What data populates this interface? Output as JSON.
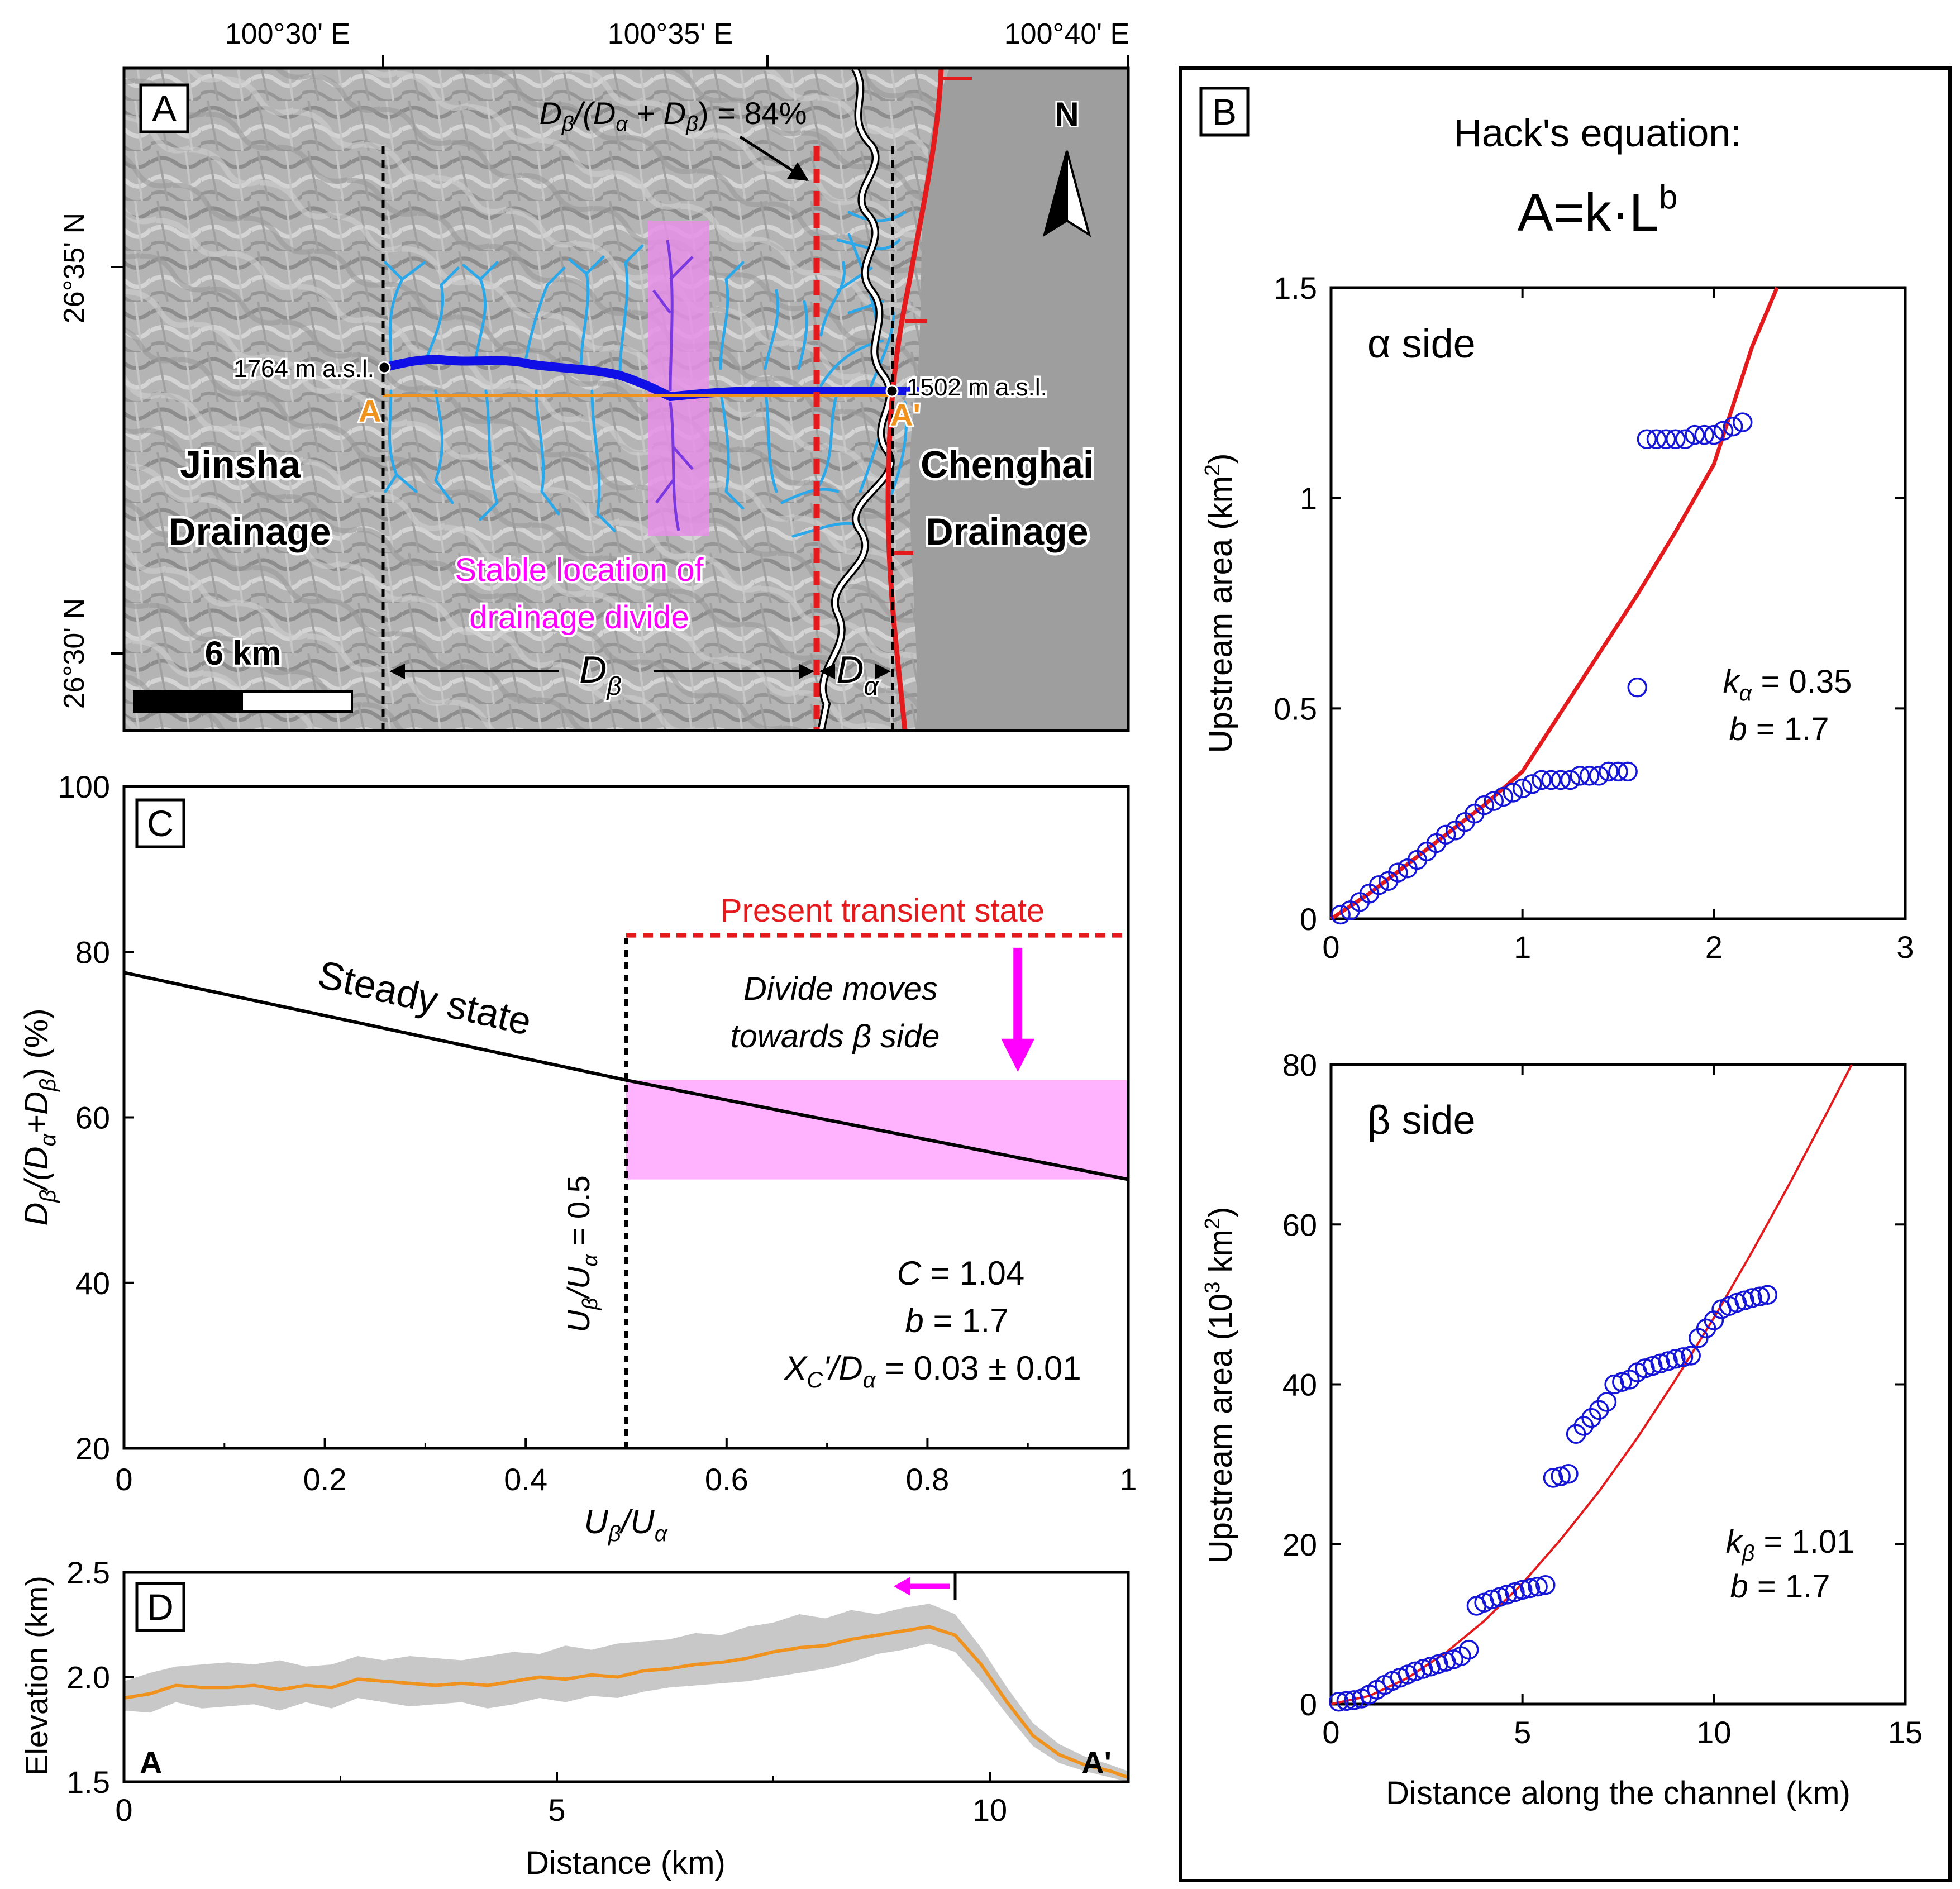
{
  "colors": {
    "accent_red": "#e41a1c",
    "river_dark": "#1010e6",
    "river_light": "#2ba8ea",
    "profile_orange": "#f0921e",
    "magenta": "#ff00ff",
    "pink_band": "#ffb3ff",
    "circle_blue": "#1515d8",
    "relief_gray": "#aaaaaa"
  },
  "panelA": {
    "label": "A",
    "top_lon_labels": [
      "100°30' E",
      "100°35' E",
      "100°40' E"
    ],
    "left_lat_labels": [
      "26°35' N",
      "26°30' N"
    ],
    "ratio_label": "Dβ/(Dα + Dβ) = 84%",
    "elev_left": "1764 m a.s.l.",
    "elev_right": "1502 m a.s.l.",
    "point_a": "A",
    "point_a_prime": "A'",
    "west_drainage": [
      "Jinsha",
      "Drainage"
    ],
    "east_drainage": [
      "Chenghai",
      "Drainage"
    ],
    "stable_location": [
      "Stable location of",
      "drainage divide"
    ],
    "scale_label": "6 km",
    "north_label": "N",
    "d_beta": "Dβ",
    "d_alpha": "Dα"
  },
  "panelB": {
    "label": "B",
    "title_line1": "Hack's equation:",
    "title_line2": "A=k·L",
    "title_exponent": "b",
    "xlabel": "Distance along the channel (km)"
  },
  "panelC": {
    "label": "C",
    "steady_state_label": "Steady state",
    "present_state_label": "Present transient state",
    "divide_moves": [
      "Divide moves",
      "towards β side"
    ],
    "vertical_line_label": "Uβ/Uα = 0.5",
    "param_c": "C = 1.04",
    "param_b": "b = 1.7",
    "param_x": "XC'/Dα = 0.03 ± 0.01"
  },
  "panelD": {
    "label": "D",
    "point_a": "A",
    "point_a_prime": "A'"
  },
  "chart_data": [
    {
      "id": "B_alpha",
      "type": "scatter",
      "title": "α side",
      "xlabel": "Distance along the channel (km)",
      "ylabel": "Upstream area (km²)",
      "xlim": [
        0,
        3
      ],
      "ylim": [
        0,
        1.5
      ],
      "xticks": [
        0,
        1,
        2,
        3
      ],
      "yticks": [
        0,
        0.5,
        1,
        1.5
      ],
      "points": [
        [
          0.05,
          0.01
        ],
        [
          0.1,
          0.02
        ],
        [
          0.15,
          0.04
        ],
        [
          0.2,
          0.06
        ],
        [
          0.25,
          0.08
        ],
        [
          0.3,
          0.09
        ],
        [
          0.35,
          0.11
        ],
        [
          0.4,
          0.12
        ],
        [
          0.45,
          0.14
        ],
        [
          0.5,
          0.16
        ],
        [
          0.55,
          0.18
        ],
        [
          0.6,
          0.2
        ],
        [
          0.65,
          0.21
        ],
        [
          0.7,
          0.23
        ],
        [
          0.75,
          0.25
        ],
        [
          0.8,
          0.27
        ],
        [
          0.85,
          0.28
        ],
        [
          0.9,
          0.29
        ],
        [
          0.95,
          0.3
        ],
        [
          1.0,
          0.31
        ],
        [
          1.05,
          0.32
        ],
        [
          1.1,
          0.33
        ],
        [
          1.15,
          0.33
        ],
        [
          1.2,
          0.33
        ],
        [
          1.25,
          0.33
        ],
        [
          1.3,
          0.34
        ],
        [
          1.35,
          0.34
        ],
        [
          1.4,
          0.34
        ],
        [
          1.45,
          0.35
        ],
        [
          1.5,
          0.35
        ],
        [
          1.55,
          0.35
        ],
        [
          1.6,
          0.55
        ],
        [
          1.65,
          1.14
        ],
        [
          1.7,
          1.14
        ],
        [
          1.75,
          1.14
        ],
        [
          1.8,
          1.14
        ],
        [
          1.85,
          1.14
        ],
        [
          1.9,
          1.15
        ],
        [
          1.95,
          1.15
        ],
        [
          2.0,
          1.15
        ],
        [
          2.05,
          1.16
        ],
        [
          2.1,
          1.17
        ],
        [
          2.15,
          1.18
        ]
      ],
      "fit_line": [
        [
          0,
          0
        ],
        [
          0.2,
          0.06
        ],
        [
          0.4,
          0.13
        ],
        [
          0.6,
          0.2
        ],
        [
          0.8,
          0.27
        ],
        [
          1.0,
          0.35
        ],
        [
          1.2,
          0.49
        ],
        [
          1.4,
          0.63
        ],
        [
          1.6,
          0.77
        ],
        [
          1.8,
          0.92
        ],
        [
          2.0,
          1.08
        ],
        [
          2.2,
          1.36
        ],
        [
          2.33,
          1.5
        ]
      ],
      "annotation": [
        "kα = 0.35",
        "b = 1.7"
      ]
    },
    {
      "id": "B_beta",
      "type": "scatter",
      "title": "β side",
      "xlabel": "Distance along the channel (km)",
      "ylabel": "Upstream area (10³ km²)",
      "xlim": [
        0,
        15
      ],
      "ylim": [
        0,
        80
      ],
      "xticks": [
        0,
        5,
        10,
        15
      ],
      "yticks": [
        0,
        20,
        40,
        60,
        80
      ],
      "points": [
        [
          0.2,
          0.3
        ],
        [
          0.4,
          0.4
        ],
        [
          0.6,
          0.5
        ],
        [
          0.8,
          0.7
        ],
        [
          1.0,
          1.2
        ],
        [
          1.2,
          1.8
        ],
        [
          1.4,
          2.4
        ],
        [
          1.6,
          2.9
        ],
        [
          1.8,
          3.3
        ],
        [
          2.0,
          3.7
        ],
        [
          2.2,
          4.1
        ],
        [
          2.4,
          4.4
        ],
        [
          2.6,
          4.7
        ],
        [
          2.8,
          5.0
        ],
        [
          3.0,
          5.3
        ],
        [
          3.2,
          5.6
        ],
        [
          3.4,
          6.0
        ],
        [
          3.6,
          6.8
        ],
        [
          3.8,
          12.3
        ],
        [
          4.0,
          12.7
        ],
        [
          4.2,
          13.1
        ],
        [
          4.4,
          13.4
        ],
        [
          4.6,
          13.7
        ],
        [
          4.8,
          14.0
        ],
        [
          5.0,
          14.3
        ],
        [
          5.2,
          14.5
        ],
        [
          5.4,
          14.7
        ],
        [
          5.6,
          14.9
        ],
        [
          5.8,
          28.3
        ],
        [
          6.0,
          28.5
        ],
        [
          6.2,
          28.8
        ],
        [
          6.4,
          33.8
        ],
        [
          6.6,
          34.8
        ],
        [
          6.8,
          35.8
        ],
        [
          7.0,
          36.8
        ],
        [
          7.2,
          37.8
        ],
        [
          7.4,
          40.0
        ],
        [
          7.6,
          40.3
        ],
        [
          7.8,
          40.6
        ],
        [
          8.0,
          41.5
        ],
        [
          8.2,
          42.0
        ],
        [
          8.4,
          42.3
        ],
        [
          8.6,
          42.6
        ],
        [
          8.8,
          42.9
        ],
        [
          9.0,
          43.2
        ],
        [
          9.2,
          43.4
        ],
        [
          9.4,
          43.6
        ],
        [
          9.6,
          45.8
        ],
        [
          9.8,
          47.0
        ],
        [
          10.0,
          48.0
        ],
        [
          10.2,
          49.4
        ],
        [
          10.4,
          49.8
        ],
        [
          10.6,
          50.2
        ],
        [
          10.8,
          50.5
        ],
        [
          11.0,
          50.8
        ],
        [
          11.2,
          51.0
        ],
        [
          11.4,
          51.2
        ]
      ],
      "fit_line": [
        [
          0,
          0
        ],
        [
          1,
          1.03
        ],
        [
          2,
          3.28
        ],
        [
          3,
          6.45
        ],
        [
          4,
          10.4
        ],
        [
          5,
          15.1
        ],
        [
          6,
          20.6
        ],
        [
          7,
          26.6
        ],
        [
          8,
          33.3
        ],
        [
          9,
          40.6
        ],
        [
          10,
          48.3
        ],
        [
          11,
          56.6
        ],
        [
          12,
          65.3
        ],
        [
          13,
          74.4
        ],
        [
          13.6,
          80
        ]
      ],
      "annotation": [
        "kβ = 1.01",
        "b = 1.7"
      ]
    },
    {
      "id": "C",
      "type": "line",
      "xlabel": "Uβ/Uα",
      "ylabel": "Dβ/(Dα+Dβ) (%)",
      "xlim": [
        0,
        1
      ],
      "ylim": [
        20,
        100
      ],
      "xticks": [
        0,
        0.2,
        0.4,
        0.6,
        0.8,
        1
      ],
      "yticks": [
        20,
        40,
        60,
        80,
        100
      ],
      "series": [
        {
          "name": "Steady state",
          "x": [
            0,
            0.5,
            1
          ],
          "y": [
            77.5,
            64.5,
            52.5
          ]
        },
        {
          "name": "Present transient state",
          "x": [
            0.5,
            1
          ],
          "y": [
            82,
            82
          ]
        }
      ],
      "vline_x": 0.5,
      "band": {
        "x": [
          0.5,
          1
        ],
        "y": [
          52.5,
          64.5
        ]
      }
    },
    {
      "id": "D",
      "type": "area",
      "xlabel": "Distance (km)",
      "ylabel": "Elevation (km)",
      "xlim": [
        0,
        11.6
      ],
      "ylim": [
        1.5,
        2.5
      ],
      "xticks": [
        0,
        5,
        10
      ],
      "yticks": [
        1.5,
        2.0,
        2.5
      ],
      "mean_profile": {
        "x": [
          0,
          0.3,
          0.6,
          0.9,
          1.2,
          1.5,
          1.8,
          2.1,
          2.4,
          2.7,
          3.0,
          3.3,
          3.6,
          3.9,
          4.2,
          4.5,
          4.8,
          5.1,
          5.4,
          5.7,
          6.0,
          6.3,
          6.6,
          6.9,
          7.2,
          7.5,
          7.8,
          8.1,
          8.4,
          8.7,
          9.0,
          9.3,
          9.6,
          9.9,
          10.2,
          10.5,
          10.8,
          11.1,
          11.4,
          11.6
        ],
        "y": [
          1.9,
          1.92,
          1.96,
          1.95,
          1.95,
          1.96,
          1.94,
          1.96,
          1.95,
          1.99,
          1.98,
          1.97,
          1.96,
          1.97,
          1.96,
          1.98,
          2.0,
          1.99,
          2.01,
          2.0,
          2.03,
          2.04,
          2.06,
          2.07,
          2.09,
          2.12,
          2.14,
          2.15,
          2.18,
          2.2,
          2.22,
          2.24,
          2.2,
          2.06,
          1.88,
          1.72,
          1.63,
          1.58,
          1.55,
          1.52
        ]
      },
      "upper_envelope": [
        1.98,
        2.02,
        2.05,
        2.06,
        2.07,
        2.06,
        2.08,
        2.05,
        2.06,
        2.1,
        2.08,
        2.1,
        2.09,
        2.08,
        2.1,
        2.12,
        2.11,
        2.15,
        2.13,
        2.16,
        2.17,
        2.18,
        2.21,
        2.2,
        2.24,
        2.26,
        2.3,
        2.28,
        2.32,
        2.3,
        2.33,
        2.35,
        2.3,
        2.14,
        1.95,
        1.78,
        1.68,
        1.62,
        1.58,
        1.55
      ],
      "lower_envelope": [
        1.84,
        1.83,
        1.88,
        1.85,
        1.86,
        1.87,
        1.84,
        1.88,
        1.85,
        1.9,
        1.88,
        1.86,
        1.87,
        1.88,
        1.85,
        1.87,
        1.9,
        1.88,
        1.91,
        1.9,
        1.93,
        1.95,
        1.96,
        1.97,
        1.98,
        2.0,
        2.02,
        2.04,
        2.07,
        2.11,
        2.13,
        2.16,
        2.12,
        1.98,
        1.82,
        1.67,
        1.59,
        1.55,
        1.52,
        1.5
      ],
      "divide_x": 9.6
    }
  ]
}
